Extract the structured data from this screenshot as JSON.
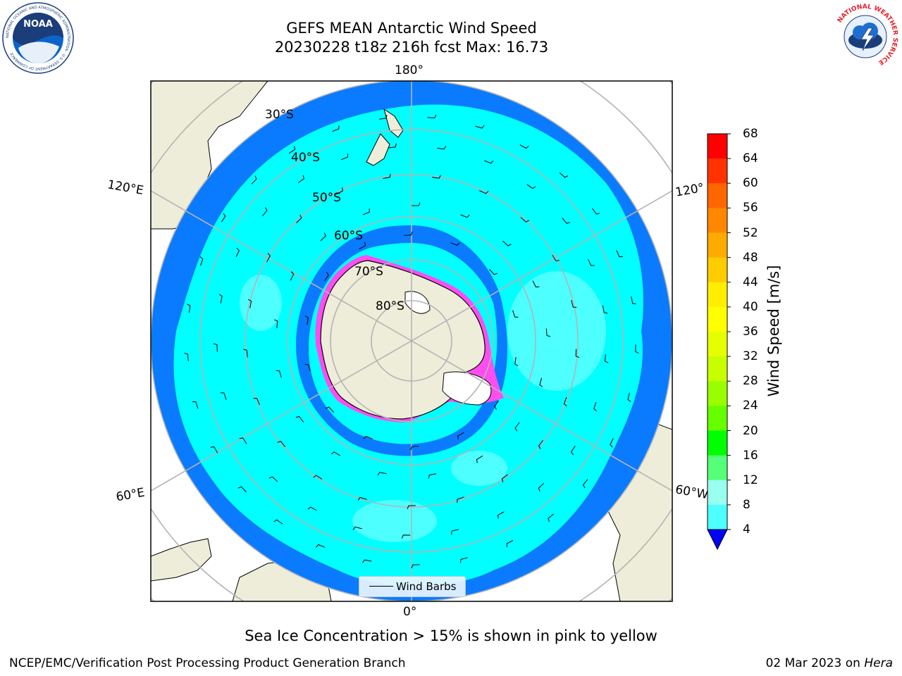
{
  "title": {
    "line1": "GEFS MEAN Antarctic Wind Speed",
    "line2": "20230228 t18z 216h fcst   Max: 16.73"
  },
  "map": {
    "projection": "south-polar-stereographic",
    "colors": {
      "ocean_4_8": "#0a7bff",
      "ocean_8_12": "#00ffff",
      "ocean_12_16": "#4dffff",
      "land": "#eeedda",
      "sea_ice": "#ff4df0",
      "grid": "#b4b4b4"
    },
    "longitude_labels": [
      "180°",
      "120°E",
      "120°",
      "60°E",
      "60°W",
      "0°"
    ],
    "latitude_labels": [
      "30°S",
      "40°S",
      "50°S",
      "60°S",
      "70°S",
      "80°S"
    ],
    "legend_label": "Wind Barbs"
  },
  "colorbar": {
    "label": "Wind Speed [m/s]",
    "ticks": [
      "68",
      "64",
      "60",
      "56",
      "52",
      "48",
      "44",
      "40",
      "36",
      "32",
      "28",
      "24",
      "20",
      "16",
      "12",
      "8",
      "4"
    ],
    "colors": [
      "#ff0000",
      "#ff3300",
      "#ff6600",
      "#ff8800",
      "#ffaa00",
      "#ffcc00",
      "#ffee00",
      "#ffff00",
      "#e6ff00",
      "#c8ff00",
      "#99ff00",
      "#66ff00",
      "#00ff00",
      "#55ff77",
      "#99ffee",
      "#4dffff",
      "#00ffff",
      "#0a7bff"
    ],
    "extend_color": "#0000ff"
  },
  "caption": "Sea Ice Concentration > 15% is shown in pink to yellow",
  "footer": {
    "left": "NCEP/EMC/Verification Post Processing Product Generation Branch",
    "right_date": "02 Mar 2023 on",
    "right_machine": "Hera"
  },
  "logos": {
    "noaa": "NOAA",
    "noaa_ring": "NATIONAL OCEANIC AND ATMOSPHERIC ADMINISTRATION · U.S. DEPARTMENT OF COMMERCE",
    "nws_ring": "NATIONAL WEATHER SERVICE"
  }
}
